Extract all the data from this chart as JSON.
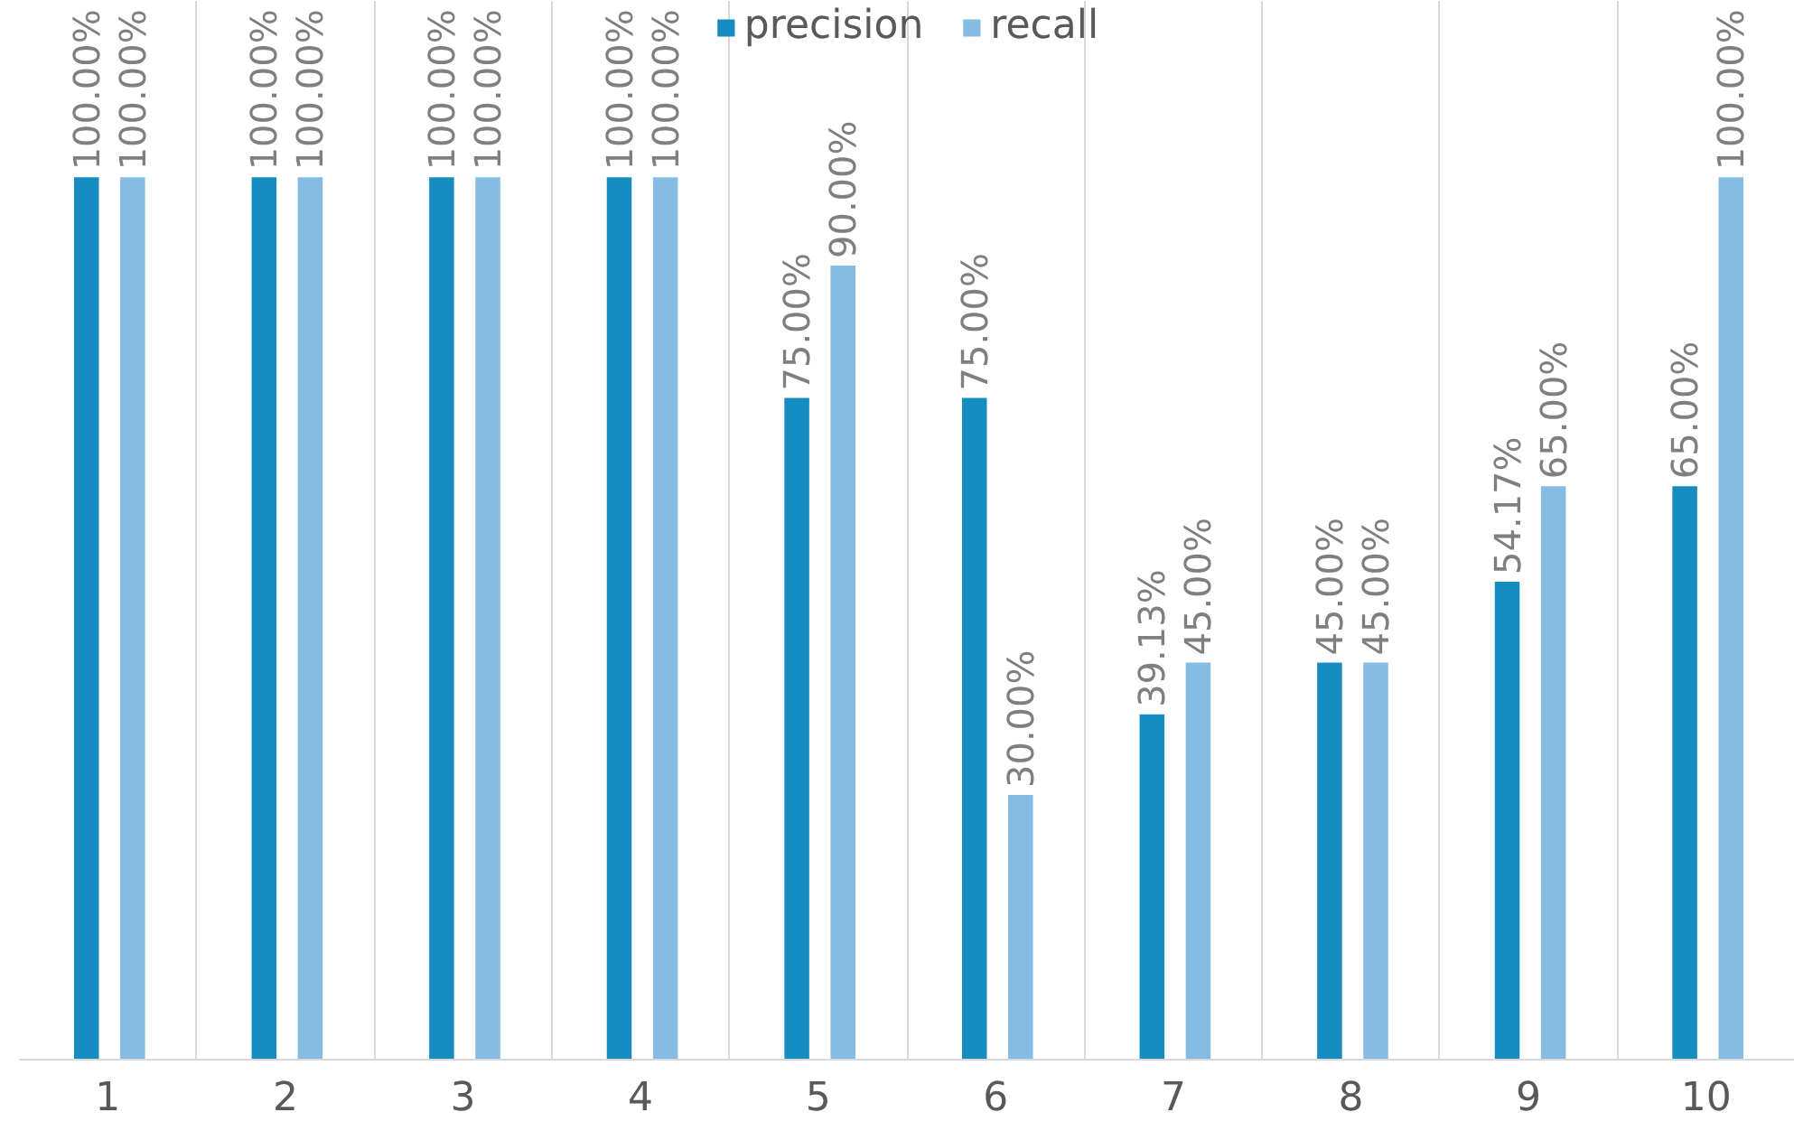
{
  "chart_data": {
    "type": "bar",
    "categories": [
      "1",
      "2",
      "3",
      "4",
      "5",
      "6",
      "7",
      "8",
      "9",
      "10"
    ],
    "series": [
      {
        "name": "precision",
        "color": "#168cc0",
        "values": [
          100,
          100,
          100,
          100,
          75,
          75,
          39.13,
          45,
          54.17,
          65
        ],
        "value_labels": [
          "100.00%",
          "100.00%",
          "100.00%",
          "100.00%",
          "75.00%",
          "75.00%",
          "39.13%",
          "45.00%",
          "54.17%",
          "65.00%"
        ]
      },
      {
        "name": "recall",
        "color": "#86bce3",
        "values": [
          100,
          100,
          100,
          100,
          90,
          30,
          45,
          45,
          65,
          100
        ],
        "value_labels": [
          "100.00%",
          "100.00%",
          "100.00%",
          "100.00%",
          "90.00%",
          "30.00%",
          "45.00%",
          "45.00%",
          "65.00%",
          "100.00%"
        ]
      }
    ],
    "ylim": [
      0,
      120
    ],
    "grid": "x",
    "legend": "top"
  }
}
